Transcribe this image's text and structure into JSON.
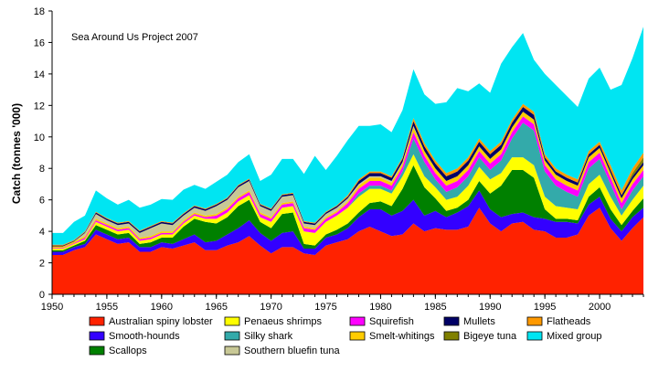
{
  "chart_data": {
    "type": "area",
    "stacked": true,
    "title": "",
    "annotation": "Sea Around Us Project 2007",
    "xlabel": "",
    "ylabel": "Catch (tonnes '000)",
    "xlim": [
      1950,
      2004
    ],
    "ylim": [
      0,
      18
    ],
    "x_ticks": [
      1950,
      1955,
      1960,
      1965,
      1970,
      1975,
      1980,
      1985,
      1990,
      1995,
      2000
    ],
    "y_ticks": [
      0,
      2,
      4,
      6,
      8,
      10,
      12,
      14,
      16,
      18
    ],
    "x": [
      1950,
      1951,
      1952,
      1953,
      1954,
      1955,
      1956,
      1957,
      1958,
      1959,
      1960,
      1961,
      1962,
      1963,
      1964,
      1965,
      1966,
      1967,
      1968,
      1969,
      1970,
      1971,
      1972,
      1973,
      1974,
      1975,
      1976,
      1977,
      1978,
      1979,
      1980,
      1981,
      1982,
      1983,
      1984,
      1985,
      1986,
      1987,
      1988,
      1989,
      1990,
      1991,
      1992,
      1993,
      1994,
      1995,
      1996,
      1997,
      1998,
      1999,
      2000,
      2001,
      2002,
      2003,
      2004
    ],
    "legend_position": "bottom",
    "series": [
      {
        "name": "Australian spiny lobster",
        "color": "#ff2200",
        "values": [
          2.5,
          2.5,
          2.8,
          3.0,
          3.8,
          3.5,
          3.2,
          3.3,
          2.7,
          2.7,
          3.0,
          2.9,
          3.1,
          3.3,
          2.8,
          2.8,
          3.1,
          3.3,
          3.7,
          3.1,
          2.6,
          3.0,
          3.0,
          2.6,
          2.5,
          3.1,
          3.3,
          3.5,
          4.0,
          4.3,
          4.0,
          3.7,
          3.8,
          4.5,
          4.0,
          4.2,
          4.1,
          4.1,
          4.3,
          5.5,
          4.5,
          4.0,
          4.5,
          4.6,
          4.1,
          4.0,
          3.6,
          3.6,
          3.8,
          5.0,
          5.5,
          4.2,
          3.4,
          4.2,
          4.9
        ]
      },
      {
        "name": "Smooth-hounds",
        "color": "#3300ff",
        "values": [
          0.2,
          0.2,
          0.2,
          0.2,
          0.3,
          0.3,
          0.3,
          0.3,
          0.3,
          0.3,
          0.3,
          0.3,
          0.4,
          0.5,
          0.5,
          0.6,
          0.7,
          0.9,
          1.0,
          0.8,
          0.8,
          0.9,
          1.0,
          0.3,
          0.4,
          0.5,
          0.5,
          0.7,
          0.9,
          1.1,
          1.4,
          1.3,
          1.5,
          1.5,
          1.0,
          1.1,
          0.8,
          1.1,
          1.3,
          1.1,
          0.9,
          0.9,
          0.6,
          0.6,
          0.8,
          0.8,
          1.0,
          1.0,
          0.7,
          0.7,
          0.7,
          0.6,
          0.6,
          0.7,
          0.6
        ]
      },
      {
        "name": "Scallops",
        "color": "#008000",
        "values": [
          0.1,
          0.1,
          0.1,
          0.2,
          0.3,
          0.3,
          0.3,
          0.3,
          0.2,
          0.3,
          0.3,
          0.4,
          0.8,
          1.0,
          1.3,
          1.1,
          1.1,
          1.4,
          1.3,
          0.7,
          0.8,
          1.2,
          1.2,
          0.3,
          0.2,
          0.2,
          0.3,
          0.3,
          0.3,
          0.4,
          0.5,
          0.6,
          1.4,
          2.2,
          1.8,
          0.8,
          0.4,
          0.3,
          0.4,
          0.6,
          1.0,
          2.0,
          2.8,
          2.7,
          2.5,
          0.6,
          0.2,
          0.2,
          0.2,
          0.5,
          0.6,
          0.6,
          0.4,
          0.4,
          0.6
        ]
      },
      {
        "name": "Penaeus shrimps",
        "color": "#ffff00",
        "values": [
          0.1,
          0.1,
          0.1,
          0.1,
          0.2,
          0.2,
          0.2,
          0.2,
          0.2,
          0.2,
          0.2,
          0.2,
          0.2,
          0.2,
          0.2,
          0.3,
          0.3,
          0.3,
          0.3,
          0.3,
          0.4,
          0.4,
          0.4,
          0.8,
          0.8,
          0.8,
          0.9,
          1.0,
          1.0,
          0.9,
          0.8,
          0.8,
          0.8,
          0.7,
          0.7,
          0.7,
          0.7,
          0.7,
          0.9,
          0.9,
          0.9,
          0.8,
          0.8,
          0.8,
          0.8,
          0.8,
          0.8,
          0.7,
          0.7,
          0.8,
          0.8,
          0.8,
          0.6,
          0.7,
          0.8
        ]
      },
      {
        "name": "Silky shark",
        "color": "#33aaaa",
        "values": [
          0,
          0,
          0,
          0,
          0,
          0,
          0,
          0,
          0,
          0,
          0,
          0,
          0,
          0,
          0,
          0,
          0,
          0,
          0,
          0,
          0,
          0,
          0,
          0,
          0,
          0,
          0,
          0,
          0.2,
          0.2,
          0.2,
          0.2,
          0.3,
          1.0,
          0.9,
          0.5,
          0.5,
          0.6,
          0.6,
          0.6,
          0.6,
          0.8,
          1.2,
          2.2,
          2.2,
          1.6,
          1.3,
          1.0,
          0.8,
          1.0,
          1.0,
          0.8,
          0.4,
          0.6,
          0.6
        ]
      },
      {
        "name": "Squirefish",
        "color": "#ff00ff",
        "values": [
          0.05,
          0.05,
          0.05,
          0.1,
          0.1,
          0.1,
          0.1,
          0.1,
          0.1,
          0.1,
          0.1,
          0.1,
          0.1,
          0.1,
          0.1,
          0.2,
          0.2,
          0.2,
          0.2,
          0.2,
          0.2,
          0.2,
          0.2,
          0.2,
          0.2,
          0.2,
          0.2,
          0.3,
          0.3,
          0.3,
          0.3,
          0.3,
          0.3,
          0.4,
          0.4,
          0.4,
          0.4,
          0.4,
          0.4,
          0.4,
          0.4,
          0.4,
          0.4,
          0.4,
          0.4,
          0.4,
          0.4,
          0.4,
          0.4,
          0.4,
          0.4,
          0.4,
          0.4,
          0.4,
          0.4
        ]
      },
      {
        "name": "Smelt-whitings",
        "color": "#ffcc00",
        "values": [
          0.1,
          0.1,
          0.1,
          0.1,
          0.1,
          0.1,
          0.1,
          0.1,
          0.1,
          0.1,
          0.1,
          0.1,
          0.1,
          0.1,
          0.1,
          0.1,
          0.1,
          0.1,
          0.1,
          0.1,
          0.1,
          0.1,
          0.1,
          0.1,
          0.1,
          0.1,
          0.1,
          0.1,
          0.2,
          0.2,
          0.2,
          0.2,
          0.2,
          0.3,
          0.3,
          0.3,
          0.3,
          0.3,
          0.3,
          0.3,
          0.3,
          0.3,
          0.3,
          0.3,
          0.3,
          0.3,
          0.3,
          0.3,
          0.3,
          0.3,
          0.3,
          0.3,
          0.3,
          0.3,
          0.3
        ]
      },
      {
        "name": "Southern bluefin tuna",
        "color": "#c8c896",
        "values": [
          0,
          0,
          0,
          0.2,
          0.3,
          0.2,
          0.2,
          0.2,
          0.3,
          0.5,
          0.5,
          0.4,
          0.3,
          0.3,
          0.3,
          0.5,
          0.5,
          0.6,
          0.6,
          0.4,
          0.4,
          0.4,
          0.4,
          0.2,
          0.2,
          0.2,
          0.2,
          0.2,
          0.1,
          0.1,
          0.1,
          0.1,
          0.1,
          0.1,
          0,
          0,
          0,
          0,
          0,
          0,
          0,
          0,
          0,
          0,
          0,
          0,
          0,
          0,
          0,
          0,
          0,
          0,
          0,
          0,
          0
        ]
      },
      {
        "name": "Mullets",
        "color": "#000066",
        "values": [
          0.05,
          0.05,
          0.05,
          0.05,
          0.1,
          0.1,
          0.1,
          0.1,
          0.1,
          0.1,
          0.1,
          0.1,
          0.1,
          0.1,
          0.1,
          0.1,
          0.1,
          0.1,
          0.1,
          0.1,
          0.1,
          0.1,
          0.1,
          0.1,
          0.1,
          0.1,
          0.1,
          0.1,
          0.2,
          0.2,
          0.2,
          0.2,
          0.2,
          0.3,
          0.3,
          0.3,
          0.3,
          0.3,
          0.3,
          0.3,
          0.3,
          0.3,
          0.3,
          0.3,
          0.3,
          0.2,
          0.2,
          0.2,
          0.2,
          0.2,
          0.2,
          0.2,
          0.2,
          0.2,
          0.2
        ]
      },
      {
        "name": "Bigeye tuna",
        "color": "#808000",
        "values": [
          0,
          0,
          0,
          0,
          0,
          0,
          0,
          0,
          0,
          0,
          0,
          0,
          0,
          0,
          0,
          0,
          0,
          0,
          0,
          0,
          0,
          0,
          0,
          0,
          0,
          0,
          0,
          0,
          0,
          0,
          0,
          0,
          0,
          0,
          0,
          0,
          0,
          0,
          0,
          0,
          0,
          0,
          0,
          0,
          0,
          0,
          0,
          0,
          0,
          0,
          0,
          0,
          0,
          0.2,
          0.3
        ]
      },
      {
        "name": "Flatheads",
        "color": "#ff9900",
        "values": [
          0.05,
          0.05,
          0.05,
          0.05,
          0.05,
          0.05,
          0.05,
          0.05,
          0.05,
          0.05,
          0.05,
          0.05,
          0.05,
          0.05,
          0.05,
          0.05,
          0.05,
          0.05,
          0.05,
          0.05,
          0.05,
          0.05,
          0.05,
          0.05,
          0.05,
          0.05,
          0.05,
          0.1,
          0.1,
          0.1,
          0.1,
          0.1,
          0.1,
          0.2,
          0.2,
          0.2,
          0.2,
          0.2,
          0.2,
          0.2,
          0.2,
          0.2,
          0.2,
          0.2,
          0.2,
          0.2,
          0.2,
          0.2,
          0.2,
          0.2,
          0.2,
          0.3,
          0.3,
          0.3,
          0.3
        ]
      },
      {
        "name": "Mixed group",
        "color": "#00e5f2",
        "values": [
          0.75,
          0.75,
          1.15,
          1.0,
          1.35,
          1.25,
          1.15,
          1.35,
          1.45,
          1.35,
          1.4,
          1.45,
          1.5,
          1.3,
          1.25,
          1.4,
          1.45,
          1.45,
          1.55,
          1.45,
          2.15,
          2.25,
          2.15,
          3.0,
          4.25,
          2.65,
          3.15,
          3.5,
          3.4,
          2.9,
          3.0,
          2.8,
          3.0,
          3.1,
          3.1,
          3.6,
          4.5,
          5.1,
          4.2,
          3.5,
          3.7,
          4.95,
          4.6,
          4.5,
          3.3,
          5.1,
          5.3,
          5.0,
          4.6,
          4.6,
          4.7,
          4.8,
          6.7,
          7.0,
          8.0
        ]
      }
    ]
  }
}
